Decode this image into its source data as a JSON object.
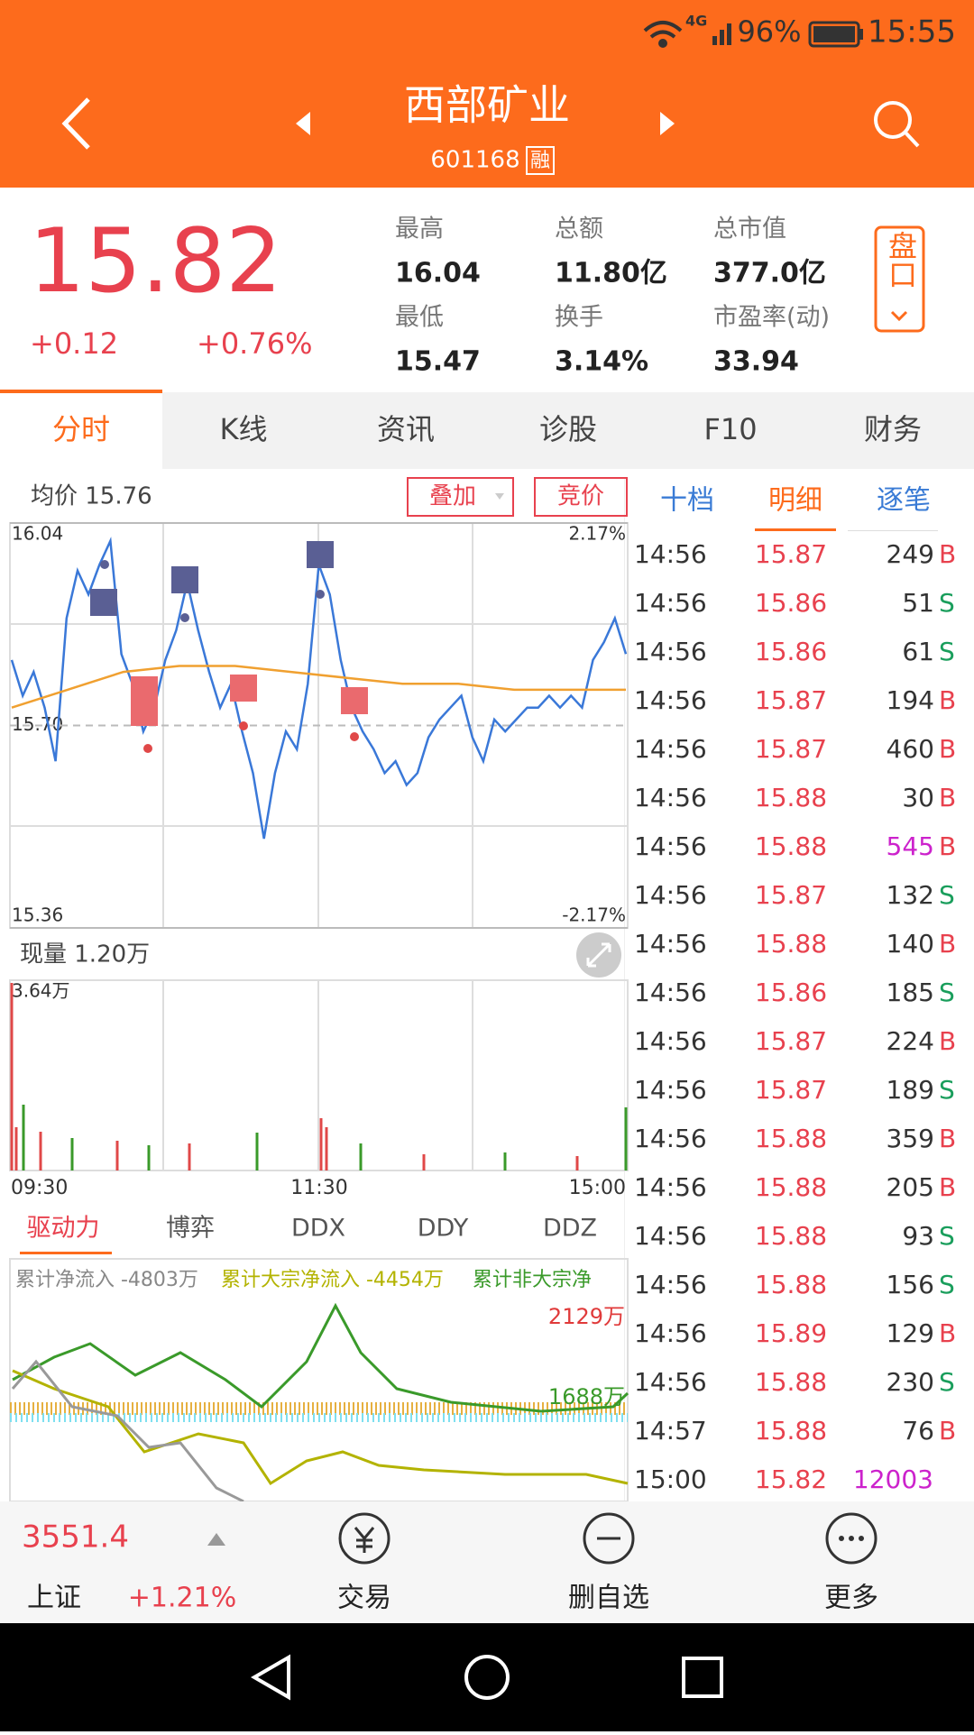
{
  "status": {
    "network": "4G",
    "battery": "96%",
    "time": "15:55"
  },
  "header": {
    "title": "西部矿业",
    "code": "601168",
    "badge": "融"
  },
  "quote": {
    "price": "15.82",
    "change": "+0.12",
    "change_pct": "+0.76%",
    "stats": [
      {
        "label": "最高",
        "value": "16.04"
      },
      {
        "label": "总额",
        "value": "11.80亿"
      },
      {
        "label": "总市值",
        "value": "377.0亿"
      },
      {
        "label": "最低",
        "value": "15.47"
      },
      {
        "label": "换手",
        "value": "3.14%"
      },
      {
        "label": "市盈率(动)",
        "value": "33.94"
      }
    ],
    "side_button": "盘口"
  },
  "tabs": {
    "items": [
      "分时",
      "K线",
      "资讯",
      "诊股",
      "F10",
      "财务"
    ],
    "active": 0
  },
  "chart_tools": {
    "avg": "均价 15.76",
    "overlay": "叠加",
    "auction": "竞价"
  },
  "chart_data": {
    "type": "line",
    "ylim": [
      15.36,
      16.04
    ],
    "yticks": [
      16.04,
      {
        "value": 15.7,
        "label": "15.70"
      },
      15.36
    ],
    "y2lim": [
      -2.17,
      2.17
    ],
    "y2ticks": [
      {
        "value": 2.17,
        "label": "2.17%"
      },
      {
        "value": -2.17,
        "label": "-2.17%"
      }
    ],
    "series": [
      {
        "color": "#3a78d8",
        "values": [
          15.81,
          15.75,
          15.79,
          15.73,
          15.64,
          15.88,
          15.96,
          15.92,
          15.97,
          16.01,
          15.82,
          15.77,
          15.69,
          15.73,
          15.81,
          15.86,
          15.94,
          15.86,
          15.79,
          15.73,
          15.77,
          15.69,
          15.62,
          15.51,
          15.62,
          15.69,
          15.66,
          15.77,
          15.97,
          15.92,
          15.81,
          15.73,
          15.69,
          15.66,
          15.62,
          15.64,
          15.6,
          15.62,
          15.68,
          15.71,
          15.73,
          15.75,
          15.68,
          15.64,
          15.71,
          15.69,
          15.71,
          15.73,
          15.73,
          15.75,
          15.73,
          15.75,
          15.73,
          15.81,
          15.84,
          15.88,
          15.82
        ]
      },
      {
        "color": "#f0a030",
        "values": [
          15.73,
          15.76,
          15.79,
          15.8,
          15.8,
          15.79,
          15.78,
          15.77,
          15.77,
          15.76,
          15.76,
          15.76
        ]
      }
    ]
  },
  "volume": {
    "label": "现量 1.20万",
    "max_label": "3.64万",
    "x_labels": [
      "09:30",
      "11:30",
      "15:00"
    ]
  },
  "flow": {
    "tabs": [
      "驱动力",
      "博弈",
      "DDX",
      "DDY",
      "DDZ"
    ],
    "active": 0,
    "legend": [
      {
        "text": "累计净流入 -4803万",
        "color": "#888888"
      },
      {
        "text": "累计大宗净流入 -4454万",
        "color": "#b3b300"
      },
      {
        "text": "累计非大宗净",
        "color": "#3a9a2a"
      }
    ],
    "labels": [
      {
        "text": "2129万",
        "color": "#e03a3a"
      },
      {
        "text": "1688万",
        "color": "#3a9a2a"
      }
    ]
  },
  "detail": {
    "tabs": [
      "十档",
      "明细",
      "逐笔"
    ],
    "active": 1,
    "rows": [
      [
        "14:56",
        "15.87",
        "249",
        "B"
      ],
      [
        "14:56",
        "15.86",
        "51",
        "S"
      ],
      [
        "14:56",
        "15.86",
        "61",
        "S"
      ],
      [
        "14:56",
        "15.87",
        "194",
        "B"
      ],
      [
        "14:56",
        "15.87",
        "460",
        "B"
      ],
      [
        "14:56",
        "15.88",
        "30",
        "B"
      ],
      [
        "14:56",
        "15.88",
        "545",
        "B"
      ],
      [
        "14:56",
        "15.87",
        "132",
        "S"
      ],
      [
        "14:56",
        "15.88",
        "140",
        "B"
      ],
      [
        "14:56",
        "15.86",
        "185",
        "S"
      ],
      [
        "14:56",
        "15.87",
        "224",
        "B"
      ],
      [
        "14:56",
        "15.87",
        "189",
        "S"
      ],
      [
        "14:56",
        "15.88",
        "359",
        "B"
      ],
      [
        "14:56",
        "15.88",
        "205",
        "B"
      ],
      [
        "14:56",
        "15.88",
        "93",
        "S"
      ],
      [
        "14:56",
        "15.88",
        "156",
        "S"
      ],
      [
        "14:56",
        "15.89",
        "129",
        "B"
      ],
      [
        "14:56",
        "15.88",
        "230",
        "S"
      ],
      [
        "14:57",
        "15.88",
        "76",
        "B"
      ],
      [
        "15:00",
        "15.82",
        "12003"
      ]
    ],
    "highlight_rows": [
      6,
      19
    ],
    "highlight_color": "#cc22cc"
  },
  "bottom": {
    "index_value": "3551.4",
    "index_name": "上证",
    "index_change": "+1.21%",
    "actions": [
      "交易",
      "删自选",
      "更多"
    ]
  }
}
